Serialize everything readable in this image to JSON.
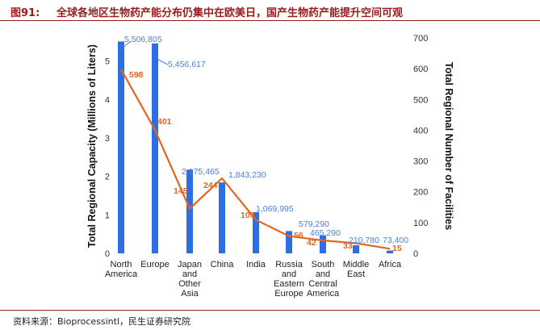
{
  "header": {
    "figure_label": "图91:",
    "title": "全球各地区生物药产能分布仍集中在欧美日，国产生物药产能提升空间可观"
  },
  "source": "资料来源：Bioprocessintl，民生证券研究院",
  "colors": {
    "bar": "#2d6fe3",
    "line": "#e2661f",
    "header": "#9a1b1b"
  },
  "chart_data": {
    "type": "bar",
    "title": "",
    "categories": [
      [
        "North",
        "America"
      ],
      [
        "Europe"
      ],
      [
        "Japan",
        "and",
        "Other",
        "Asia"
      ],
      [
        "China"
      ],
      [
        "India"
      ],
      [
        "Russia",
        "and",
        "Eastern",
        "Europe"
      ],
      [
        "South",
        "and",
        "Central",
        "America"
      ],
      [
        "Middle",
        "East"
      ],
      [
        "Africa"
      ]
    ],
    "series": [
      {
        "name": "Total Regional Capacity",
        "type": "bar",
        "axis": "left",
        "values": [
          5.506805,
          5.456617,
          2.175465,
          1.84323,
          1.069995,
          0.57929,
          0.46529,
          0.21078,
          0.0734
        ],
        "labels": [
          "5,506,805",
          "5,456,617",
          "2,175,465",
          "1,843,230",
          "1,069,995",
          "579,290",
          "465,290",
          "210,780",
          "73,400"
        ]
      },
      {
        "name": "Total Regional Number of Facilities",
        "type": "line",
        "axis": "right",
        "values": [
          598,
          401,
          145,
          244,
          109,
          56,
          42,
          33,
          15
        ],
        "labels": [
          "598",
          "401",
          "145",
          "244",
          "109",
          "56",
          "42",
          "33",
          "15"
        ]
      }
    ],
    "y_left": {
      "label": "Total Regional Capacity (Millions of Liters)",
      "ticks": [
        "0",
        "1",
        "2",
        "3",
        "4",
        "5"
      ],
      "range": [
        0,
        5.6
      ]
    },
    "y_right": {
      "label": "Total Regional Number of Facilities",
      "ticks": [
        "0",
        "100",
        "200",
        "300",
        "400",
        "500",
        "600",
        "700"
      ],
      "range": [
        0,
        700
      ]
    },
    "grid": false
  }
}
